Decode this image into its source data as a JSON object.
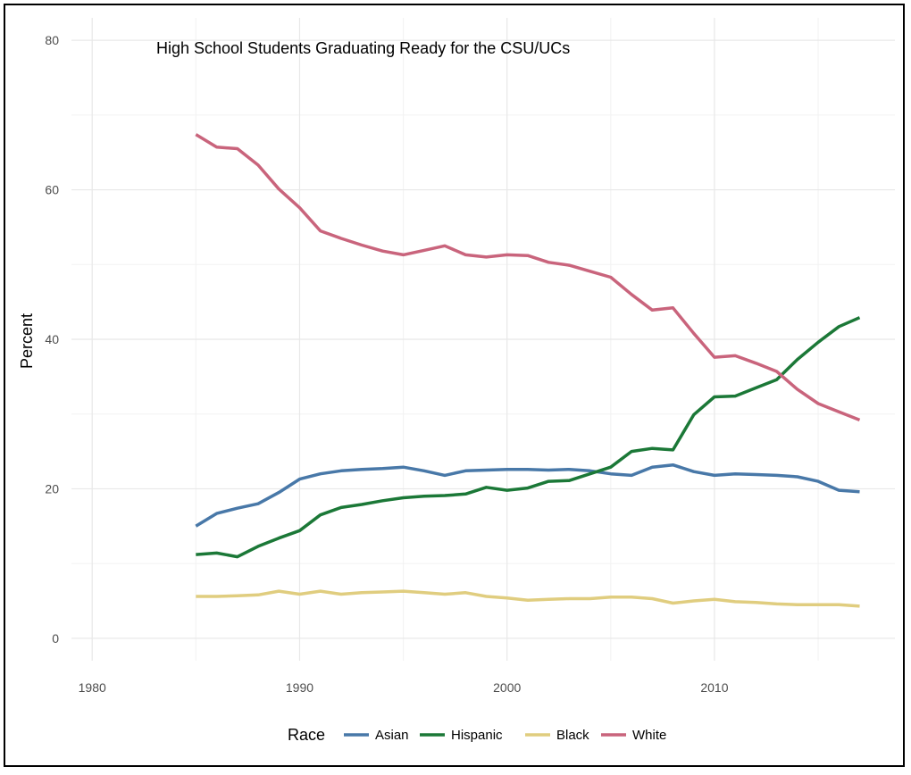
{
  "chart_data": {
    "type": "line",
    "title": "High School Students Graduating Ready for the CSU/UCs",
    "xlabel": "",
    "ylabel": "Percent",
    "xlim": [
      1979,
      2018.7
    ],
    "ylim": [
      -3,
      83
    ],
    "x_ticks": [
      1980,
      1990,
      2000,
      2010
    ],
    "y_ticks": [
      0,
      20,
      40,
      60,
      80
    ],
    "grid": true,
    "legend": {
      "title": "Race",
      "placement": "bottom"
    },
    "x": [
      1985,
      1986,
      1987,
      1988,
      1989,
      1990,
      1991,
      1992,
      1993,
      1994,
      1995,
      1996,
      1997,
      1998,
      1999,
      2000,
      2001,
      2002,
      2003,
      2004,
      2005,
      2006,
      2007,
      2008,
      2009,
      2010,
      2011,
      2012,
      2013,
      2014,
      2015,
      2016,
      2017
    ],
    "series": [
      {
        "name": "Asian",
        "color": "#4878a8",
        "values": [
          15.0,
          16.7,
          17.4,
          18.0,
          19.5,
          21.3,
          22.0,
          22.4,
          22.6,
          22.7,
          22.9,
          22.4,
          21.8,
          22.4,
          22.5,
          22.6,
          22.6,
          22.5,
          22.6,
          22.4,
          22.0,
          21.8,
          22.9,
          23.2,
          22.3,
          21.8,
          22.0,
          21.9,
          21.8,
          21.6,
          21.0,
          19.8,
          19.6
        ]
      },
      {
        "name": "Hispanic",
        "color": "#1b7837",
        "values": [
          11.2,
          11.4,
          10.9,
          12.3,
          13.4,
          14.4,
          16.5,
          17.5,
          17.9,
          18.4,
          18.8,
          19.0,
          19.1,
          19.3,
          20.2,
          19.8,
          20.1,
          21.0,
          21.1,
          22.0,
          22.9,
          25.0,
          25.4,
          25.2,
          29.9,
          32.3,
          32.4,
          33.5,
          34.6,
          37.3,
          39.6,
          41.7,
          42.9
        ]
      },
      {
        "name": "Black",
        "color": "#e0cd7f",
        "values": [
          5.6,
          5.6,
          5.7,
          5.8,
          6.3,
          5.9,
          6.3,
          5.9,
          6.1,
          6.2,
          6.3,
          6.1,
          5.9,
          6.1,
          5.6,
          5.4,
          5.1,
          5.2,
          5.3,
          5.3,
          5.5,
          5.5,
          5.3,
          4.7,
          5.0,
          5.2,
          4.9,
          4.8,
          4.6,
          4.5,
          4.5,
          4.5,
          4.3
        ]
      },
      {
        "name": "White",
        "color": "#c9647c",
        "values": [
          67.4,
          65.7,
          65.5,
          63.3,
          60.1,
          57.6,
          54.5,
          53.5,
          52.6,
          51.8,
          51.3,
          51.9,
          52.5,
          51.3,
          51.0,
          51.3,
          51.2,
          50.3,
          49.9,
          49.1,
          48.3,
          46.0,
          43.9,
          44.2,
          40.8,
          37.6,
          37.8,
          36.8,
          35.7,
          33.3,
          31.4,
          30.3,
          29.2
        ]
      }
    ]
  }
}
